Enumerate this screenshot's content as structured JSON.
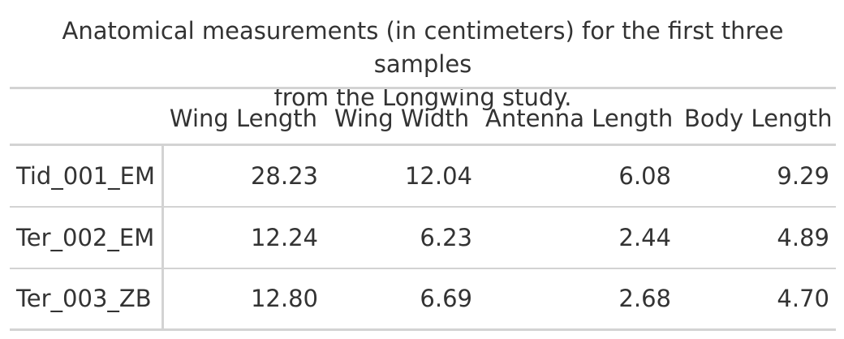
{
  "caption": {
    "line1": "Anatomical measurements (in centimeters) for the first three samples",
    "line2": "from the Longwing study."
  },
  "table": {
    "columns": [
      "",
      "Wing Length",
      "Wing Width",
      "Antenna Length",
      "Body Length"
    ],
    "rows": [
      {
        "sample": "Tid_001_EM",
        "values": [
          "28.23",
          "12.04",
          "6.08",
          "9.29"
        ]
      },
      {
        "sample": "Ter_002_EM",
        "values": [
          "12.24",
          "6.23",
          "2.44",
          "4.89"
        ]
      },
      {
        "sample": "Ter_003_ZB",
        "values": [
          "12.80",
          "6.69",
          "2.68",
          "4.70"
        ]
      }
    ]
  }
}
